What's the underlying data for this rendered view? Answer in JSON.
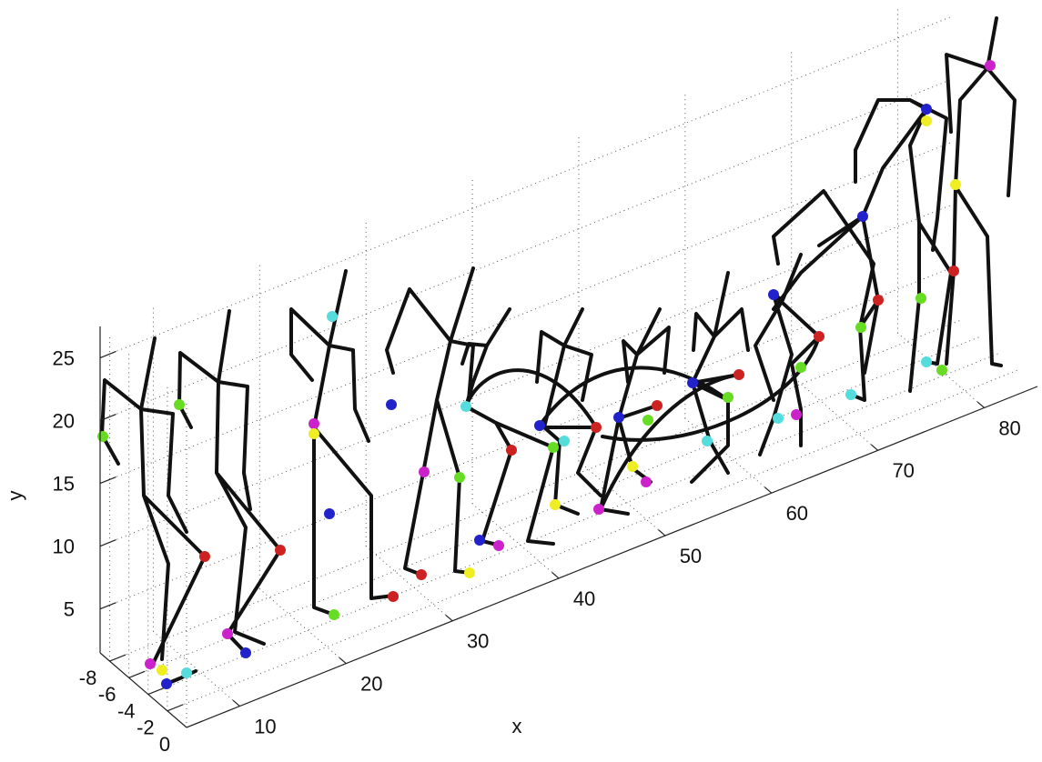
{
  "chart_data": {
    "type": "line3d",
    "xlabel": "x",
    "ylabel": "y",
    "xlim": [
      5,
      85
    ],
    "xticks": [
      10,
      20,
      30,
      40,
      50,
      60,
      70,
      80
    ],
    "ylim": [
      1.5,
      27.5
    ],
    "yticks": [
      5,
      10,
      15,
      20,
      25
    ],
    "zlim": [
      -9,
      0
    ],
    "zticks": [
      -8,
      -6,
      -4,
      -2,
      0
    ],
    "grid": true
  }
}
